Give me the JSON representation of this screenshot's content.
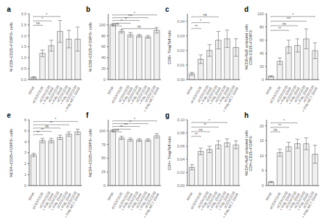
{
  "chart_data": [
    {
      "type": "bar",
      "title": "a",
      "ylabel": "% CD8+CD25+FOXP3+ cells",
      "categories": [
        "RPMI",
        "αCD3/CD28",
        "αCD3/CD28\n+ Poly 10nM",
        "αCD3/CD28\n+ Poly 15nM",
        "αCD3/CD28\n+ Poly 20nM",
        "αCD3/CD28\n+ Poly MCT 15nM"
      ],
      "values": [
        0.1,
        1.2,
        1.55,
        2.2,
        1.85,
        1.85
      ],
      "errors": [
        0.04,
        0.15,
        0.25,
        0.5,
        0.4,
        0.55
      ],
      "color": "#f0f0f0",
      "ylim": [
        0,
        3.0
      ],
      "yticks": [
        {
          "value": 0,
          "label": "0.0"
        },
        0.5,
        {
          "value": 1.0,
          "label": "1.0"
        },
        1.5,
        {
          "value": 2.0,
          "label": "2.0"
        },
        2.5,
        {
          "value": 3.0,
          "label": "3.0"
        }
      ],
      "annotations": [
        {
          "x1": 0,
          "x2": 3,
          "y": 2.88,
          "label": "*"
        },
        {
          "x1": 0,
          "x2": 2,
          "y": 2.68,
          "label": "*"
        },
        {
          "x1": 0,
          "x2": 1,
          "y": 2.48,
          "label": "ns"
        }
      ]
    },
    {
      "type": "bar",
      "title": "b",
      "ylabel": "% CD8+CD25+FOXP3+ cells",
      "categories": [
        "RPMI",
        "αCD3/CD28",
        "αCD3/CD28\n+ Poly 10nM",
        "αCD3/CD28\n+ Poly 15nM",
        "αCD3/CD28\n+ Poly 20nM",
        "αCD3/CD28\n+ Poly MCT 15nM"
      ],
      "values": [
        100,
        88,
        82,
        80,
        78,
        90
      ],
      "errors": [
        1.5,
        3,
        4,
        2.5,
        2.5,
        5
      ],
      "color": "#f0f0f0",
      "ylim": [
        0,
        120
      ],
      "yticks": [
        0,
        20,
        40,
        60,
        80,
        100
      ],
      "annotations": [
        {
          "x1": 0,
          "x2": 5,
          "y": 118,
          "label": "*"
        },
        {
          "x1": 0,
          "x2": 4,
          "y": 113,
          "label": "***"
        },
        {
          "x1": 0,
          "x2": 3,
          "y": 108,
          "label": "**"
        },
        {
          "x1": 0,
          "x2": 2,
          "y": 103,
          "label": "*"
        },
        {
          "x1": 0,
          "x2": 1,
          "y": 98,
          "label": "ns"
        },
        {
          "x1": 1,
          "x2": 5,
          "y": 93,
          "label": "ns"
        }
      ]
    },
    {
      "type": "bar",
      "title": "c",
      "ylabel": "CD8+ Treg/Teff ratio",
      "categories": [
        "RPMI",
        "αCD3/CD28",
        "αCD3/CD28\n+ Poly 10nM",
        "αCD3/CD28\n+ Poly 15nM",
        "αCD3/CD28\n+ Poly 20nM",
        "αCD3/CD28\n+ Poly MCT 15nM"
      ],
      "values": [
        0.004,
        0.014,
        0.02,
        0.027,
        0.028,
        0.022
      ],
      "errors": [
        0.001,
        0.003,
        0.004,
        0.006,
        0.006,
        0.006
      ],
      "color": "#f0f0f0",
      "ylim": [
        0,
        0.045
      ],
      "yticks": [
        {
          "value": 0,
          "label": "0.00"
        },
        0.01,
        0.02,
        0.03,
        0.04
      ],
      "annotations": [
        {
          "x1": 0,
          "x2": 3,
          "y": 0.043,
          "label": "ns"
        },
        {
          "x1": 0,
          "x2": 2,
          "y": 0.039,
          "label": "*"
        },
        {
          "x1": 0,
          "x2": 1,
          "y": 0.035,
          "label": "**"
        }
      ]
    },
    {
      "type": "bar",
      "title": "d",
      "ylabel": "%CD8+NaB activated cells\nCD8+CD25+FOXP3-",
      "categories": [
        "RPMI",
        "αCD3/CD28",
        "αCD3/CD28\n+ Poly 10nM",
        "αCD3/CD28\n+ Poly 15nM",
        "αCD3/CD28\n+ Poly 20nM",
        "αCD3/CD28\n+ Poly MCT 15nM"
      ],
      "values": [
        5,
        28,
        50,
        52,
        62,
        44
      ],
      "errors": [
        1,
        5,
        10,
        10,
        15,
        12
      ],
      "color": "#f0f0f0",
      "ylim": [
        0,
        100
      ],
      "yticks": [
        0,
        20,
        40,
        60,
        80,
        100
      ],
      "annotations": [
        {
          "x1": 0,
          "x2": 5,
          "y": 96,
          "label": "*"
        },
        {
          "x1": 0,
          "x2": 4,
          "y": 89,
          "label": "***"
        },
        {
          "x1": 0,
          "x2": 3,
          "y": 82,
          "label": "ns"
        },
        {
          "x1": 0,
          "x2": 2,
          "y": 75,
          "label": "**"
        }
      ]
    },
    {
      "type": "bar",
      "title": "e",
      "ylabel": "%CD4+CD25+FOXP3+ cells",
      "categories": [
        "RPMI",
        "αCD3/CD28",
        "αCD3/CD28\n+ Poly 10nM",
        "αCD3/CD28\n+ Poly 15nM",
        "αCD3/CD28\n+ Poly 20nM",
        "αCD3/CD28\n+ Poly MCT 15nM"
      ],
      "values": [
        2.8,
        4.1,
        4.1,
        4.4,
        4.7,
        4.9
      ],
      "errors": [
        0.15,
        0.2,
        0.2,
        0.2,
        0.2,
        0.25
      ],
      "color": "#f0f0f0",
      "ylim": [
        0,
        6
      ],
      "yticks": [
        0,
        1,
        2,
        3,
        4,
        5,
        6
      ],
      "annotations": [
        {
          "x1": 0,
          "x2": 5,
          "y": 5.85,
          "label": "*"
        },
        {
          "x1": 0,
          "x2": 4,
          "y": 5.55,
          "label": "**"
        },
        {
          "x1": 0,
          "x2": 3,
          "y": 5.25,
          "label": "ns"
        },
        {
          "x1": 0,
          "x2": 2,
          "y": 4.95,
          "label": "**"
        },
        {
          "x1": 0,
          "x2": 1,
          "y": 4.65,
          "label": "**"
        }
      ]
    },
    {
      "type": "bar",
      "title": "f",
      "ylabel": "%CD4+CD25+FOXP3+ cells",
      "categories": [
        "RPMI",
        "αCD3/CD28",
        "αCD3/CD28\n+ Poly 10nM",
        "αCD3/CD28\n+ Poly 15nM",
        "αCD3/CD28\n+ Poly 20nM",
        "αCD3/CD28\n+ Poly MCT 15nM"
      ],
      "values": [
        100,
        87,
        84,
        83,
        83,
        91
      ],
      "errors": [
        1.5,
        3,
        3,
        2.5,
        2.5,
        4
      ],
      "color": "#f0f0f0",
      "ylim": [
        0,
        120
      ],
      "yticks": [
        0,
        25,
        50,
        75,
        100
      ],
      "annotations": [
        {
          "x1": 0,
          "x2": 5,
          "y": 118,
          "label": "*"
        },
        {
          "x1": 0,
          "x2": 4,
          "y": 113,
          "label": "**"
        },
        {
          "x1": 0,
          "x2": 3,
          "y": 108,
          "label": "***"
        },
        {
          "x1": 0,
          "x2": 2,
          "y": 103,
          "label": "**"
        },
        {
          "x1": 0,
          "x2": 1,
          "y": 98,
          "label": "ns"
        }
      ]
    },
    {
      "type": "bar",
      "title": "g",
      "ylabel": "CD4+ Treg/Teff ratio",
      "categories": [
        "RPMI",
        "αCD3/CD28",
        "αCD3/CD28\n+ Poly 10nM",
        "αCD3/CD28\n+ Poly 15nM",
        "αCD3/CD28\n+ Poly 20nM",
        "αCD3/CD28\n+ Poly MCT 15nM"
      ],
      "values": [
        0.028,
        0.052,
        0.055,
        0.062,
        0.065,
        0.062
      ],
      "errors": [
        0.004,
        0.005,
        0.005,
        0.006,
        0.006,
        0.006
      ],
      "color": "#f0f0f0",
      "ylim": [
        0,
        0.1
      ],
      "yticks": [
        {
          "value": 0,
          "label": "0.00"
        },
        0.02,
        0.04,
        0.06,
        0.08,
        {
          "value": 0.1,
          "label": "0.10"
        }
      ],
      "annotations": [
        {
          "x1": 0,
          "x2": 4,
          "y": 0.096,
          "label": "*"
        },
        {
          "x1": 0,
          "x2": 3,
          "y": 0.089,
          "label": "**"
        },
        {
          "x1": 0,
          "x2": 2,
          "y": 0.082,
          "label": "ns"
        },
        {
          "x1": 0,
          "x2": 1,
          "y": 0.075,
          "label": "**"
        }
      ]
    },
    {
      "type": "bar",
      "title": "h",
      "ylabel": "%CD4+NaB activated cells\nCD4+CD25+FOXP3-",
      "categories": [
        "RPMI",
        "αCD3/CD28",
        "αCD3/CD28\n+ Poly 10nM",
        "αCD3/CD28\n+ Poly 15nM",
        "αCD3/CD28\n+ Poly 20nM",
        "αCD3/CD28\n+ Poly MCT 15nM"
      ],
      "values": [
        1.2,
        11,
        13,
        14,
        14,
        10.5
      ],
      "errors": [
        0.2,
        1.2,
        1.5,
        1.5,
        2,
        3
      ],
      "color": "#f0f0f0",
      "ylim": [
        0,
        22
      ],
      "yticks": [
        0,
        5,
        10,
        15,
        20
      ],
      "annotations": [
        {
          "x1": 0,
          "x2": 3,
          "y": 21.0,
          "label": "*"
        },
        {
          "x1": 0,
          "x2": 2,
          "y": 19.5,
          "label": "**"
        },
        {
          "x1": 0,
          "x2": 1,
          "y": 18.0,
          "label": "ns"
        }
      ]
    }
  ]
}
